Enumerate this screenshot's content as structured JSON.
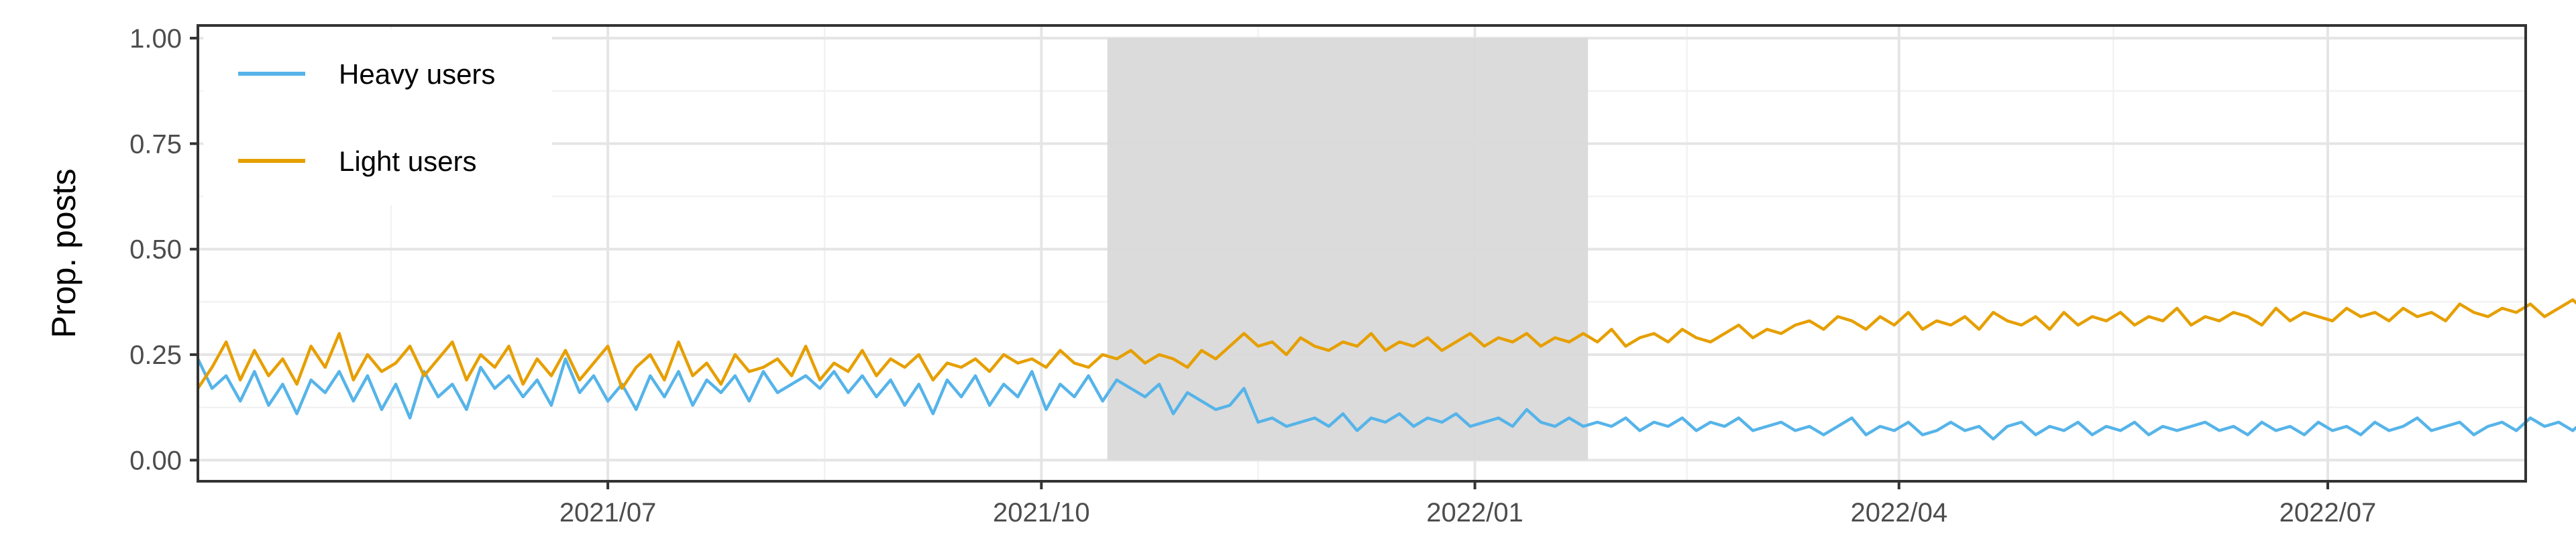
{
  "chart_data": {
    "type": "line",
    "ylabel": "Prop. posts",
    "xlabel": "",
    "title": "",
    "x_range": [
      "2021-04-05",
      "2022-08-12"
    ],
    "x_ticks": [
      {
        "date": "2021-07-01",
        "label": "2021/07"
      },
      {
        "date": "2021-10-01",
        "label": "2021/10"
      },
      {
        "date": "2022-01-01",
        "label": "2022/01"
      },
      {
        "date": "2022-04-01",
        "label": "2022/04"
      },
      {
        "date": "2022-07-01",
        "label": "2022/07"
      }
    ],
    "ylim": [
      -0.05,
      1.03
    ],
    "y_ticks": [
      {
        "value": 0.0,
        "label": "0.00"
      },
      {
        "value": 0.25,
        "label": "0.25"
      },
      {
        "value": 0.5,
        "label": "0.50"
      },
      {
        "value": 0.75,
        "label": "0.75"
      },
      {
        "value": 1.0,
        "label": "1.00"
      }
    ],
    "grid": true,
    "legend_position": "top-left",
    "shaded_period": {
      "start": "2021-10-15",
      "end": "2022-01-25",
      "ymin": 0,
      "ymax": 1,
      "color": "#d9d9d9"
    },
    "series": [
      {
        "name": "Heavy users",
        "color": "#56B4E9",
        "x_start": "2021-04-05",
        "x_step_days": 3,
        "values": [
          0.24,
          0.17,
          0.2,
          0.14,
          0.21,
          0.13,
          0.18,
          0.11,
          0.19,
          0.16,
          0.21,
          0.14,
          0.2,
          0.12,
          0.18,
          0.1,
          0.21,
          0.15,
          0.18,
          0.12,
          0.22,
          0.17,
          0.2,
          0.15,
          0.19,
          0.13,
          0.24,
          0.16,
          0.2,
          0.14,
          0.18,
          0.12,
          0.2,
          0.15,
          0.21,
          0.13,
          0.19,
          0.16,
          0.2,
          0.14,
          0.21,
          0.16,
          0.18,
          0.2,
          0.17,
          0.21,
          0.16,
          0.2,
          0.15,
          0.19,
          0.13,
          0.18,
          0.11,
          0.19,
          0.15,
          0.2,
          0.13,
          0.18,
          0.15,
          0.21,
          0.12,
          0.18,
          0.15,
          0.2,
          0.14,
          0.19,
          0.17,
          0.15,
          0.18,
          0.11,
          0.16,
          0.14,
          0.12,
          0.13,
          0.17,
          0.09,
          0.1,
          0.08,
          0.09,
          0.1,
          0.08,
          0.11,
          0.07,
          0.1,
          0.09,
          0.11,
          0.08,
          0.1,
          0.09,
          0.11,
          0.08,
          0.09,
          0.1,
          0.08,
          0.12,
          0.09,
          0.08,
          0.1,
          0.08,
          0.09,
          0.08,
          0.1,
          0.07,
          0.09,
          0.08,
          0.1,
          0.07,
          0.09,
          0.08,
          0.1,
          0.07,
          0.08,
          0.09,
          0.07,
          0.08,
          0.06,
          0.08,
          0.1,
          0.06,
          0.08,
          0.07,
          0.09,
          0.06,
          0.07,
          0.09,
          0.07,
          0.08,
          0.05,
          0.08,
          0.09,
          0.06,
          0.08,
          0.07,
          0.09,
          0.06,
          0.08,
          0.07,
          0.09,
          0.06,
          0.08,
          0.07,
          0.08,
          0.09,
          0.07,
          0.08,
          0.06,
          0.09,
          0.07,
          0.08,
          0.06,
          0.09,
          0.07,
          0.08,
          0.06,
          0.09,
          0.07,
          0.08,
          0.1,
          0.07,
          0.08,
          0.09,
          0.06,
          0.08,
          0.09,
          0.07,
          0.1,
          0.08,
          0.09,
          0.07,
          0.1,
          0.08,
          0.07,
          0.09,
          0.08,
          0.06,
          0.09,
          0.07,
          0.08,
          0.1,
          0.07,
          0.09,
          0.06,
          0.08,
          0.07,
          0.1,
          0.08,
          0.06,
          0.09,
          0.07,
          0.05,
          0.06,
          0.06
        ]
      },
      {
        "name": "Light users",
        "color": "#E69F00",
        "x_start": "2021-04-05",
        "x_step_days": 3,
        "values": [
          0.17,
          0.22,
          0.28,
          0.19,
          0.26,
          0.2,
          0.24,
          0.18,
          0.27,
          0.22,
          0.3,
          0.19,
          0.25,
          0.21,
          0.23,
          0.27,
          0.2,
          0.24,
          0.28,
          0.19,
          0.25,
          0.22,
          0.27,
          0.18,
          0.24,
          0.2,
          0.26,
          0.19,
          0.23,
          0.27,
          0.17,
          0.22,
          0.25,
          0.19,
          0.28,
          0.2,
          0.23,
          0.18,
          0.25,
          0.21,
          0.22,
          0.24,
          0.2,
          0.27,
          0.19,
          0.23,
          0.21,
          0.26,
          0.2,
          0.24,
          0.22,
          0.25,
          0.19,
          0.23,
          0.22,
          0.24,
          0.21,
          0.25,
          0.23,
          0.24,
          0.22,
          0.26,
          0.23,
          0.22,
          0.25,
          0.24,
          0.26,
          0.23,
          0.25,
          0.24,
          0.22,
          0.26,
          0.24,
          0.27,
          0.3,
          0.27,
          0.28,
          0.25,
          0.29,
          0.27,
          0.26,
          0.28,
          0.27,
          0.3,
          0.26,
          0.28,
          0.27,
          0.29,
          0.26,
          0.28,
          0.3,
          0.27,
          0.29,
          0.28,
          0.3,
          0.27,
          0.29,
          0.28,
          0.3,
          0.28,
          0.31,
          0.27,
          0.29,
          0.3,
          0.28,
          0.31,
          0.29,
          0.28,
          0.3,
          0.32,
          0.29,
          0.31,
          0.3,
          0.32,
          0.33,
          0.31,
          0.34,
          0.33,
          0.31,
          0.34,
          0.32,
          0.35,
          0.31,
          0.33,
          0.32,
          0.34,
          0.31,
          0.35,
          0.33,
          0.32,
          0.34,
          0.31,
          0.35,
          0.32,
          0.34,
          0.33,
          0.35,
          0.32,
          0.34,
          0.33,
          0.36,
          0.32,
          0.34,
          0.33,
          0.35,
          0.34,
          0.32,
          0.36,
          0.33,
          0.35,
          0.34,
          0.33,
          0.36,
          0.34,
          0.35,
          0.33,
          0.36,
          0.34,
          0.35,
          0.33,
          0.37,
          0.35,
          0.34,
          0.36,
          0.35,
          0.37,
          0.34,
          0.36,
          0.38,
          0.35,
          0.37,
          0.36,
          0.38,
          0.35,
          0.37,
          0.39,
          0.36,
          0.38,
          0.37,
          0.4,
          0.37,
          0.39,
          0.38,
          0.41,
          0.38,
          0.4,
          0.39,
          0.42,
          0.4,
          0.43,
          0.41,
          0.45,
          0.43,
          0.47,
          0.42
        ]
      }
    ]
  }
}
